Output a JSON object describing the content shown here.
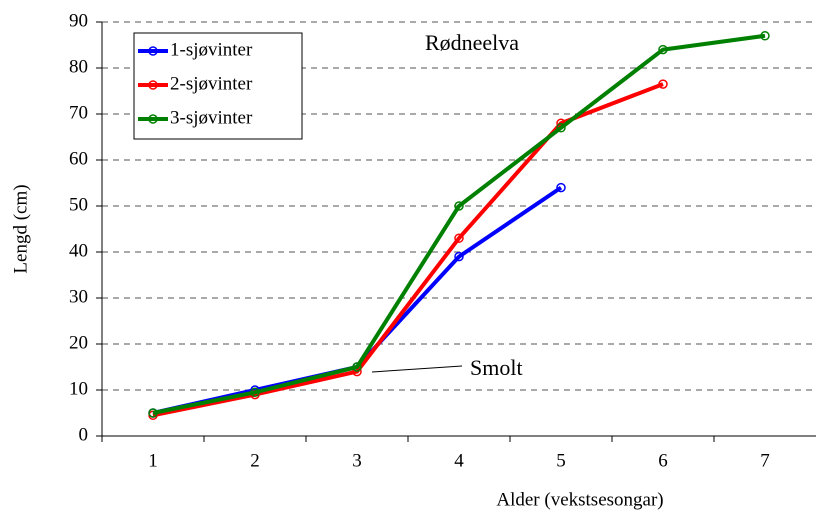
{
  "chart_data": {
    "type": "line",
    "title": "Rødneelva",
    "xlabel": "Alder (vekstsesongar)",
    "ylabel": "Lengd (cm)",
    "annotation": "Smolt",
    "categories": [
      "1",
      "2",
      "3",
      "4",
      "5",
      "6",
      "7"
    ],
    "series": [
      {
        "name": "1-sjøvinter",
        "color": "#0000ff",
        "values": [
          5,
          10,
          15,
          39,
          54,
          null,
          null
        ]
      },
      {
        "name": "2-sjøvinter",
        "color": "#ff0000",
        "values": [
          4.5,
          9,
          14,
          43,
          68,
          76.5,
          null
        ]
      },
      {
        "name": "3-sjøvinter",
        "color": "#008000",
        "values": [
          5,
          9.5,
          15,
          50,
          67,
          84,
          87
        ]
      }
    ],
    "ylim": [
      0,
      90
    ],
    "yticks": [
      0,
      10,
      20,
      30,
      40,
      50,
      60,
      70,
      80,
      90
    ],
    "grid": true,
    "legend": "upper left"
  }
}
